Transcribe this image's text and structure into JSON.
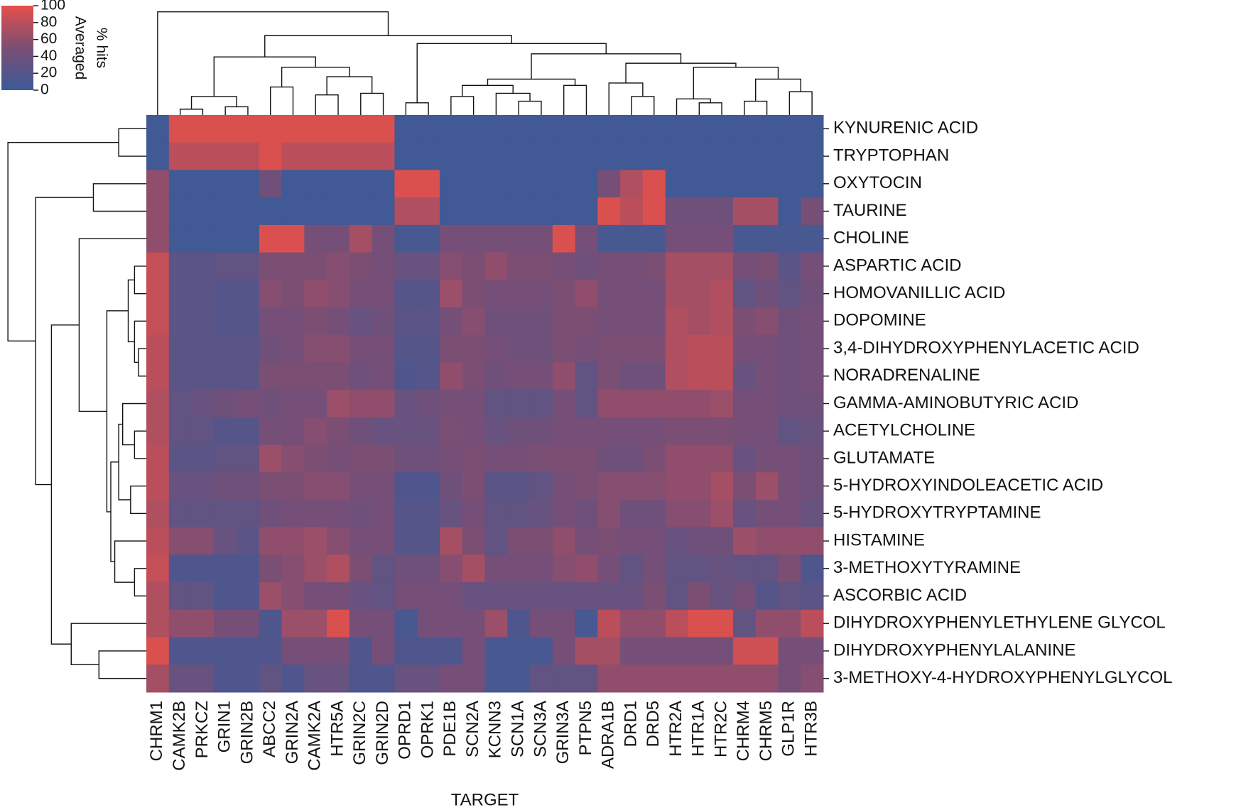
{
  "chart_data": {
    "type": "heatmap",
    "x_label": "TARGET",
    "colorbar_label": [
      "Averaged",
      "% hits"
    ],
    "colors": [
      "#3b5a98",
      "#7b4e74",
      "#e4504b"
    ],
    "zlim": [
      0,
      100
    ],
    "zticks": [
      0,
      20,
      40,
      60,
      80,
      100
    ],
    "x_categories": [
      "CHRM1",
      "CAMK2B",
      "PRKCZ",
      "GRIN1",
      "GRIN2B",
      "ABCC2",
      "GRIN2A",
      "CAMK2A",
      "HTR5A",
      "GRIN2C",
      "GRIN2D",
      "OPRD1",
      "OPRK1",
      "PDE1B",
      "SCN2A",
      "KCNN3",
      "SCN1A",
      "SCN3A",
      "GRIN3A",
      "PTPN5",
      "ADRA1B",
      "DRD1",
      "DRD5",
      "HTR2A",
      "HTR1A",
      "HTR2C",
      "CHRM4",
      "CHRM5",
      "GLP1R",
      "HTR3B"
    ],
    "y_categories": [
      "KYNURENIC ACID",
      "TRYPTOPHAN",
      "OXYTOCIN",
      "TAURINE",
      "CHOLINE",
      "ASPARTIC ACID",
      "HOMOVANILLIC ACID",
      "DOPOMINE",
      "3,4-DIHYDROXYPHENYLACETIC ACID",
      "NORADRENALINE",
      "GAMMA-AMINOBUTYRIC ACID",
      "ACETYLCHOLINE",
      "GLUTAMATE",
      "5-HYDROXYINDOLEACETIC ACID",
      "5-HYDROXYTRYPTAMINE",
      "HISTAMINE",
      "3-METHOXYTYRAMINE",
      "ASCORBIC ACID",
      "DIHYDROXYPHENYLETHYLENE GLYCOL",
      "DIHYDROXYPHENYLALANINE",
      "3-METHOXY-4-HYDROXYPHENYLGLYCOL"
    ],
    "values": [
      [
        5,
        95,
        95,
        95,
        95,
        95,
        95,
        95,
        95,
        95,
        95,
        5,
        5,
        5,
        5,
        5,
        5,
        5,
        5,
        5,
        5,
        5,
        5,
        5,
        5,
        5,
        5,
        5,
        5,
        5
      ],
      [
        5,
        80,
        80,
        80,
        80,
        95,
        80,
        80,
        80,
        80,
        80,
        5,
        5,
        5,
        5,
        5,
        5,
        5,
        5,
        5,
        5,
        5,
        5,
        5,
        5,
        5,
        5,
        5,
        5,
        5
      ],
      [
        60,
        5,
        5,
        5,
        5,
        40,
        5,
        5,
        5,
        5,
        5,
        95,
        95,
        5,
        5,
        5,
        5,
        5,
        5,
        5,
        45,
        75,
        95,
        5,
        5,
        5,
        5,
        5,
        5,
        5
      ],
      [
        60,
        5,
        5,
        5,
        5,
        5,
        5,
        5,
        5,
        5,
        5,
        75,
        75,
        5,
        5,
        5,
        5,
        5,
        5,
        5,
        95,
        80,
        95,
        40,
        40,
        40,
        70,
        70,
        5,
        45
      ],
      [
        60,
        5,
        5,
        5,
        5,
        95,
        95,
        45,
        45,
        70,
        45,
        10,
        10,
        45,
        45,
        45,
        45,
        45,
        95,
        45,
        10,
        10,
        10,
        45,
        45,
        45,
        10,
        10,
        10,
        10
      ],
      [
        85,
        25,
        25,
        30,
        30,
        50,
        50,
        50,
        55,
        50,
        45,
        35,
        35,
        55,
        50,
        60,
        50,
        50,
        45,
        40,
        45,
        45,
        50,
        70,
        70,
        70,
        45,
        50,
        25,
        45
      ],
      [
        85,
        25,
        25,
        20,
        20,
        55,
        50,
        60,
        55,
        45,
        45,
        20,
        20,
        65,
        50,
        45,
        45,
        45,
        50,
        60,
        45,
        45,
        45,
        70,
        70,
        75,
        30,
        40,
        30,
        40
      ],
      [
        85,
        25,
        25,
        20,
        20,
        45,
        45,
        50,
        45,
        35,
        40,
        25,
        25,
        45,
        55,
        40,
        40,
        40,
        50,
        50,
        45,
        45,
        45,
        75,
        70,
        75,
        50,
        55,
        40,
        45
      ],
      [
        80,
        25,
        25,
        25,
        25,
        40,
        45,
        55,
        55,
        45,
        45,
        20,
        20,
        50,
        50,
        45,
        40,
        40,
        50,
        45,
        50,
        50,
        50,
        75,
        80,
        80,
        45,
        45,
        40,
        45
      ],
      [
        80,
        25,
        25,
        25,
        25,
        50,
        50,
        50,
        50,
        40,
        45,
        15,
        20,
        60,
        50,
        40,
        45,
        45,
        60,
        30,
        50,
        40,
        40,
        75,
        80,
        80,
        35,
        45,
        40,
        45
      ],
      [
        75,
        30,
        35,
        40,
        45,
        40,
        45,
        45,
        65,
        60,
        60,
        35,
        40,
        45,
        45,
        30,
        30,
        30,
        45,
        30,
        60,
        60,
        60,
        60,
        60,
        65,
        45,
        45,
        40,
        40
      ],
      [
        75,
        30,
        30,
        20,
        20,
        45,
        45,
        55,
        50,
        40,
        35,
        35,
        35,
        50,
        45,
        35,
        40,
        40,
        45,
        45,
        45,
        45,
        45,
        50,
        50,
        50,
        45,
        45,
        30,
        35
      ],
      [
        80,
        25,
        25,
        30,
        30,
        65,
        55,
        50,
        45,
        50,
        50,
        40,
        40,
        45,
        50,
        45,
        45,
        50,
        50,
        50,
        40,
        40,
        50,
        60,
        60,
        60,
        35,
        45,
        45,
        40
      ],
      [
        80,
        35,
        35,
        40,
        40,
        50,
        50,
        55,
        55,
        45,
        45,
        15,
        15,
        40,
        50,
        25,
        25,
        30,
        45,
        50,
        55,
        55,
        55,
        60,
        60,
        70,
        50,
        65,
        45,
        40
      ],
      [
        75,
        30,
        30,
        30,
        30,
        40,
        45,
        45,
        45,
        40,
        45,
        20,
        20,
        35,
        45,
        30,
        30,
        35,
        45,
        40,
        55,
        40,
        40,
        55,
        55,
        65,
        35,
        45,
        45,
        35
      ],
      [
        80,
        55,
        55,
        35,
        25,
        60,
        60,
        65,
        55,
        45,
        45,
        20,
        20,
        70,
        50,
        30,
        50,
        50,
        60,
        45,
        50,
        45,
        45,
        35,
        40,
        40,
        65,
        60,
        60,
        60
      ],
      [
        85,
        15,
        15,
        15,
        15,
        50,
        55,
        65,
        75,
        50,
        30,
        40,
        40,
        55,
        70,
        45,
        45,
        45,
        55,
        60,
        45,
        30,
        45,
        30,
        30,
        35,
        30,
        30,
        50,
        15
      ],
      [
        75,
        30,
        30,
        15,
        15,
        65,
        55,
        45,
        45,
        35,
        30,
        45,
        45,
        45,
        35,
        35,
        35,
        35,
        35,
        35,
        35,
        35,
        50,
        30,
        50,
        35,
        45,
        20,
        30,
        25
      ],
      [
        75,
        60,
        60,
        45,
        45,
        15,
        65,
        65,
        95,
        45,
        45,
        10,
        45,
        45,
        45,
        65,
        15,
        45,
        45,
        10,
        80,
        60,
        60,
        80,
        95,
        95,
        30,
        60,
        60,
        80
      ],
      [
        95,
        15,
        15,
        15,
        15,
        15,
        45,
        45,
        45,
        15,
        45,
        15,
        15,
        15,
        45,
        10,
        10,
        10,
        45,
        70,
        70,
        45,
        45,
        45,
        45,
        45,
        90,
        90,
        45,
        45
      ],
      [
        70,
        35,
        35,
        15,
        15,
        30,
        15,
        35,
        35,
        15,
        15,
        35,
        35,
        45,
        45,
        10,
        10,
        30,
        30,
        30,
        60,
        60,
        60,
        60,
        60,
        60,
        60,
        60,
        45,
        55
      ]
    ]
  }
}
